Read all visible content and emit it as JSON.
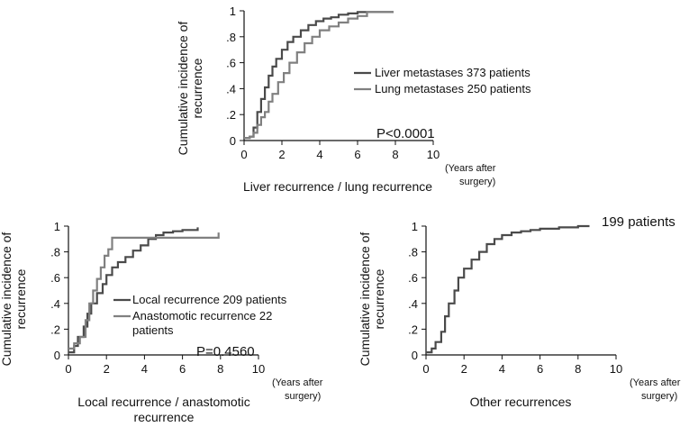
{
  "chart_data": [
    {
      "type": "line",
      "panel": "top",
      "xlabel": "Liver recurrence / lung recurrence",
      "ylabel": [
        "Cumulative incidence of",
        "recurrence"
      ],
      "x_unit": [
        "(Years after",
        "surgery)"
      ],
      "xlim": [
        0,
        10
      ],
      "ylim": [
        0,
        1
      ],
      "x_ticks": [
        "0",
        "2",
        "4",
        "6",
        "8",
        "10"
      ],
      "y_ticks": [
        "0",
        ".2",
        ".4",
        ".6",
        ".8",
        "1"
      ],
      "annotation": "P<0.0001",
      "legend": "right",
      "series": [
        {
          "name": "Liver metastases 373 patients",
          "color": "#4a4a4a",
          "x": [
            0,
            0.3,
            0.5,
            0.7,
            0.9,
            1.1,
            1.3,
            1.5,
            1.7,
            2.0,
            2.3,
            2.6,
            3.0,
            3.4,
            3.8,
            4.2,
            4.6,
            5.0,
            5.5,
            6.0,
            7.9
          ],
          "y": [
            0.02,
            0.03,
            0.1,
            0.22,
            0.32,
            0.41,
            0.5,
            0.57,
            0.63,
            0.7,
            0.76,
            0.8,
            0.85,
            0.89,
            0.92,
            0.94,
            0.95,
            0.97,
            0.98,
            0.99,
            0.99
          ]
        },
        {
          "name": "Lung metastases 250 patients",
          "color": "#808080",
          "x": [
            0,
            0.3,
            0.5,
            0.7,
            0.9,
            1.1,
            1.3,
            1.5,
            1.8,
            2.1,
            2.4,
            2.8,
            3.2,
            3.6,
            4.0,
            4.5,
            5.0,
            5.5,
            6.0,
            6.5,
            7.9
          ],
          "y": [
            0.02,
            0.03,
            0.06,
            0.12,
            0.18,
            0.22,
            0.3,
            0.36,
            0.45,
            0.52,
            0.6,
            0.68,
            0.75,
            0.8,
            0.85,
            0.88,
            0.91,
            0.94,
            0.96,
            0.99,
            0.99
          ]
        }
      ]
    },
    {
      "type": "line",
      "panel": "bottom-left",
      "xlabel": [
        "Local recurrence / anastomotic",
        "recurrence"
      ],
      "ylabel": [
        "Cumulative incidence of",
        "recurrence"
      ],
      "x_unit": [
        "(Years after",
        "surgery)"
      ],
      "xlim": [
        0,
        10
      ],
      "ylim": [
        0,
        1
      ],
      "x_ticks": [
        "0",
        "2",
        "4",
        "6",
        "8",
        "10"
      ],
      "y_ticks": [
        "0",
        ".2",
        ".4",
        ".6",
        ".8",
        "1"
      ],
      "annotation": "P=0.4560",
      "legend": "center-right",
      "series": [
        {
          "name": "Local recurrence 209 patients",
          "color": "#4a4a4a",
          "x": [
            0,
            0.3,
            0.5,
            0.8,
            1.0,
            1.2,
            1.5,
            1.8,
            2.0,
            2.3,
            2.6,
            3.0,
            3.4,
            3.8,
            4.2,
            4.6,
            5.0,
            5.5,
            6.0,
            6.8
          ],
          "y": [
            0.02,
            0.07,
            0.14,
            0.22,
            0.32,
            0.4,
            0.48,
            0.55,
            0.62,
            0.68,
            0.72,
            0.76,
            0.81,
            0.85,
            0.9,
            0.93,
            0.95,
            0.96,
            0.97,
            0.99
          ]
        },
        {
          "name": "Anastomotic recurrence 22 patients",
          "color": "#808080",
          "x": [
            0,
            0.3,
            0.6,
            0.9,
            1.1,
            1.3,
            1.5,
            1.7,
            1.9,
            2.1,
            2.3,
            7.9
          ],
          "y": [
            0.05,
            0.09,
            0.14,
            0.27,
            0.4,
            0.5,
            0.59,
            0.68,
            0.77,
            0.82,
            0.91,
            0.95
          ]
        }
      ]
    },
    {
      "type": "line",
      "panel": "bottom-right",
      "xlabel": "Other recurrences",
      "ylabel": [
        "Cumulative incidence of",
        "recurrence"
      ],
      "x_unit": [
        "(Years after",
        "surgery)"
      ],
      "xlim": [
        0,
        10
      ],
      "ylim": [
        0,
        1
      ],
      "x_ticks": [
        "0",
        "2",
        "4",
        "6",
        "8",
        "10"
      ],
      "y_ticks": [
        "0",
        ".2",
        ".4",
        ".6",
        ".8",
        "1"
      ],
      "series": [
        {
          "name": "199 patients",
          "color": "#4a4a4a",
          "x": [
            0,
            0.3,
            0.5,
            0.8,
            1.0,
            1.2,
            1.5,
            1.7,
            2.0,
            2.4,
            2.8,
            3.2,
            3.6,
            4.0,
            4.5,
            5.0,
            5.5,
            6.0,
            7.0,
            8.0,
            8.6
          ],
          "y": [
            0.02,
            0.05,
            0.1,
            0.18,
            0.3,
            0.4,
            0.5,
            0.6,
            0.67,
            0.74,
            0.8,
            0.86,
            0.9,
            0.93,
            0.95,
            0.96,
            0.97,
            0.98,
            0.99,
            1.0,
            1.0
          ]
        }
      ]
    }
  ]
}
